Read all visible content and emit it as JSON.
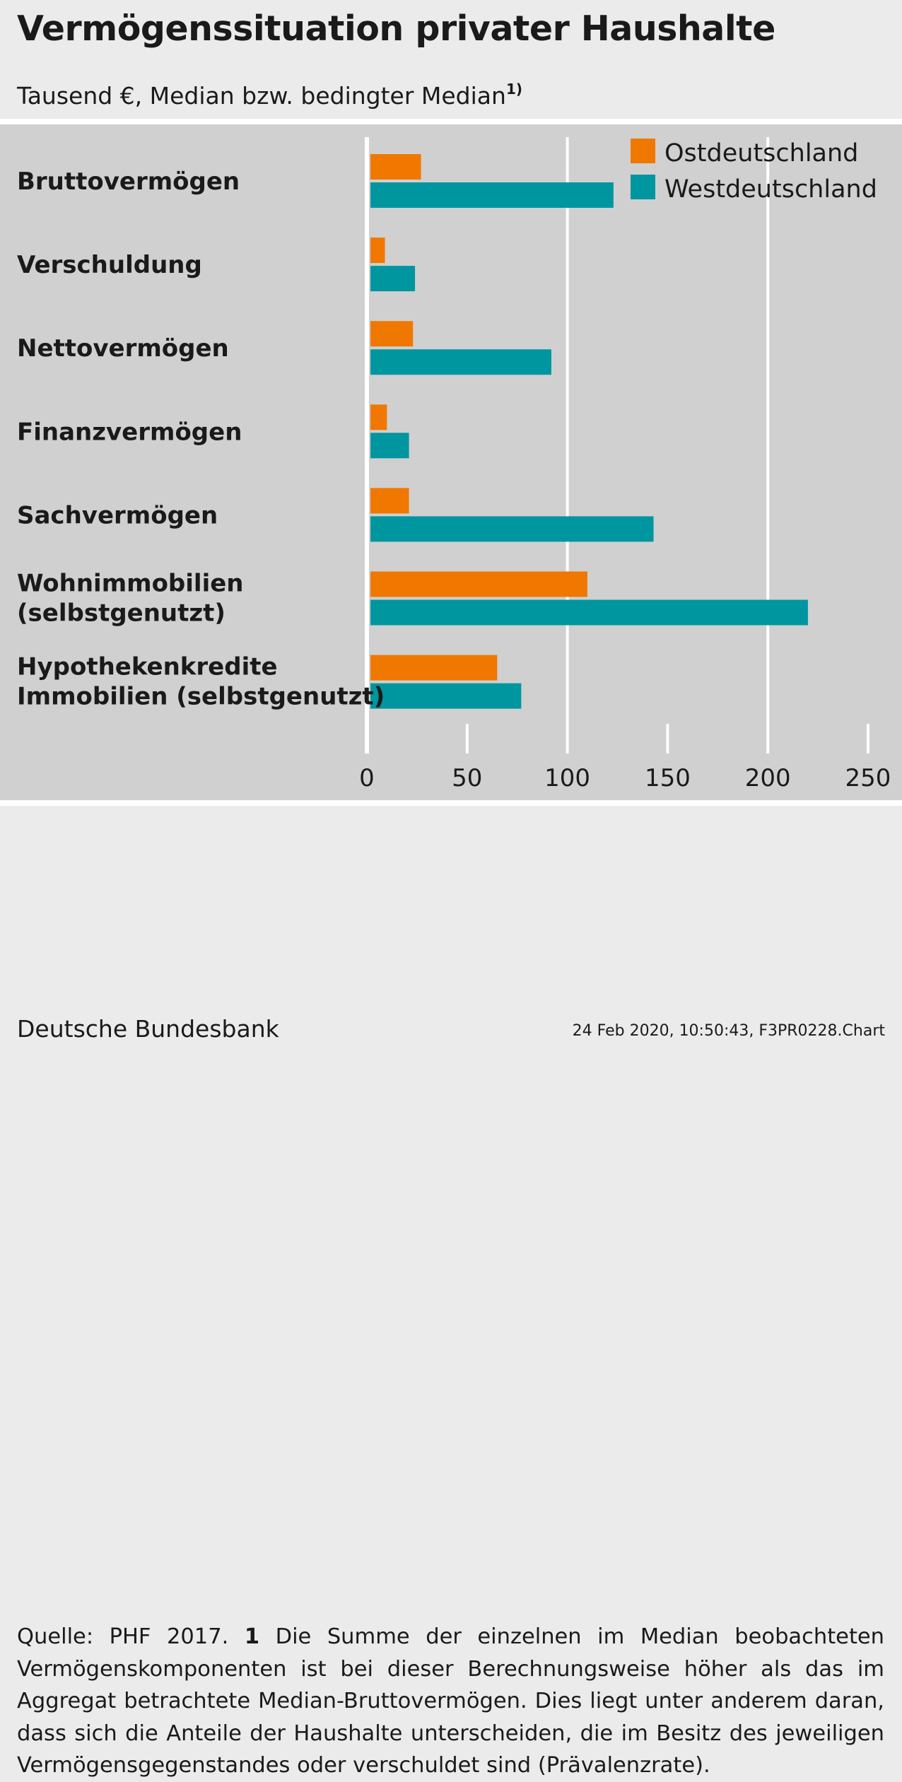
{
  "header": {
    "title": "Vermögenssituation privater Haushalte",
    "subtitle": "Tausend €, Median bzw. bedingter Median",
    "subtitle_footnote_mark": "1)"
  },
  "colors": {
    "ost": "#f07800",
    "west": "#00969f",
    "panel": "#d0d0d0",
    "grid": "#ffffff"
  },
  "chart_data": {
    "type": "bar",
    "orientation": "horizontal",
    "title": "Vermögenssituation privater Haushalte",
    "unit": "Tausend €",
    "categories": [
      "Bruttovermögen",
      "Verschuldung",
      "Nettovermögen",
      "Finanzvermögen",
      "Sachvermögen",
      "Wohnimmobilien (selbstgenutzt)",
      "Hypothekenkredite Immobilien (selbstgenutzt)"
    ],
    "category_lines": [
      [
        "Bruttovermögen"
      ],
      [
        "Verschuldung"
      ],
      [
        "Nettovermögen"
      ],
      [
        "Finanzvermögen"
      ],
      [
        "Sachvermögen"
      ],
      [
        "Wohnimmobilien",
        "(selbstgenutzt)"
      ],
      [
        "Hypothekenkredite",
        "Immobilien (selbstgenutzt)"
      ]
    ],
    "series": [
      {
        "name": "Ostdeutschland",
        "values": [
          27,
          9,
          23,
          10,
          21,
          110,
          65
        ]
      },
      {
        "name": "Westdeutschland",
        "values": [
          123,
          24,
          92,
          21,
          143,
          220,
          77
        ]
      }
    ],
    "xlim": [
      0,
      250
    ],
    "xticks": [
      "0",
      "50",
      "100",
      "150",
      "200",
      "250"
    ],
    "grid": true,
    "legend_position": "top-right"
  },
  "footer": {
    "note_source": "Quelle: PHF 2017.",
    "note_number": "1",
    "note_text": "Die Summe der einzelnen im Median beobachteten Vermögenskomponenten ist bei dieser Berechnungsweise höher als das im Aggregat betrachtete Median-Bruttovermögen. Dies liegt unter anderem daran, dass sich die Anteile der Haushalte unterscheiden, die im Besitz des jeweiligen Vermögensgegenstandes oder verschuldet sind (Prävalenzrate).",
    "publisher": "Deutsche Bundesbank",
    "timestamp": "24 Feb 2020, 10:50:43, F3PR0228.Chart"
  }
}
